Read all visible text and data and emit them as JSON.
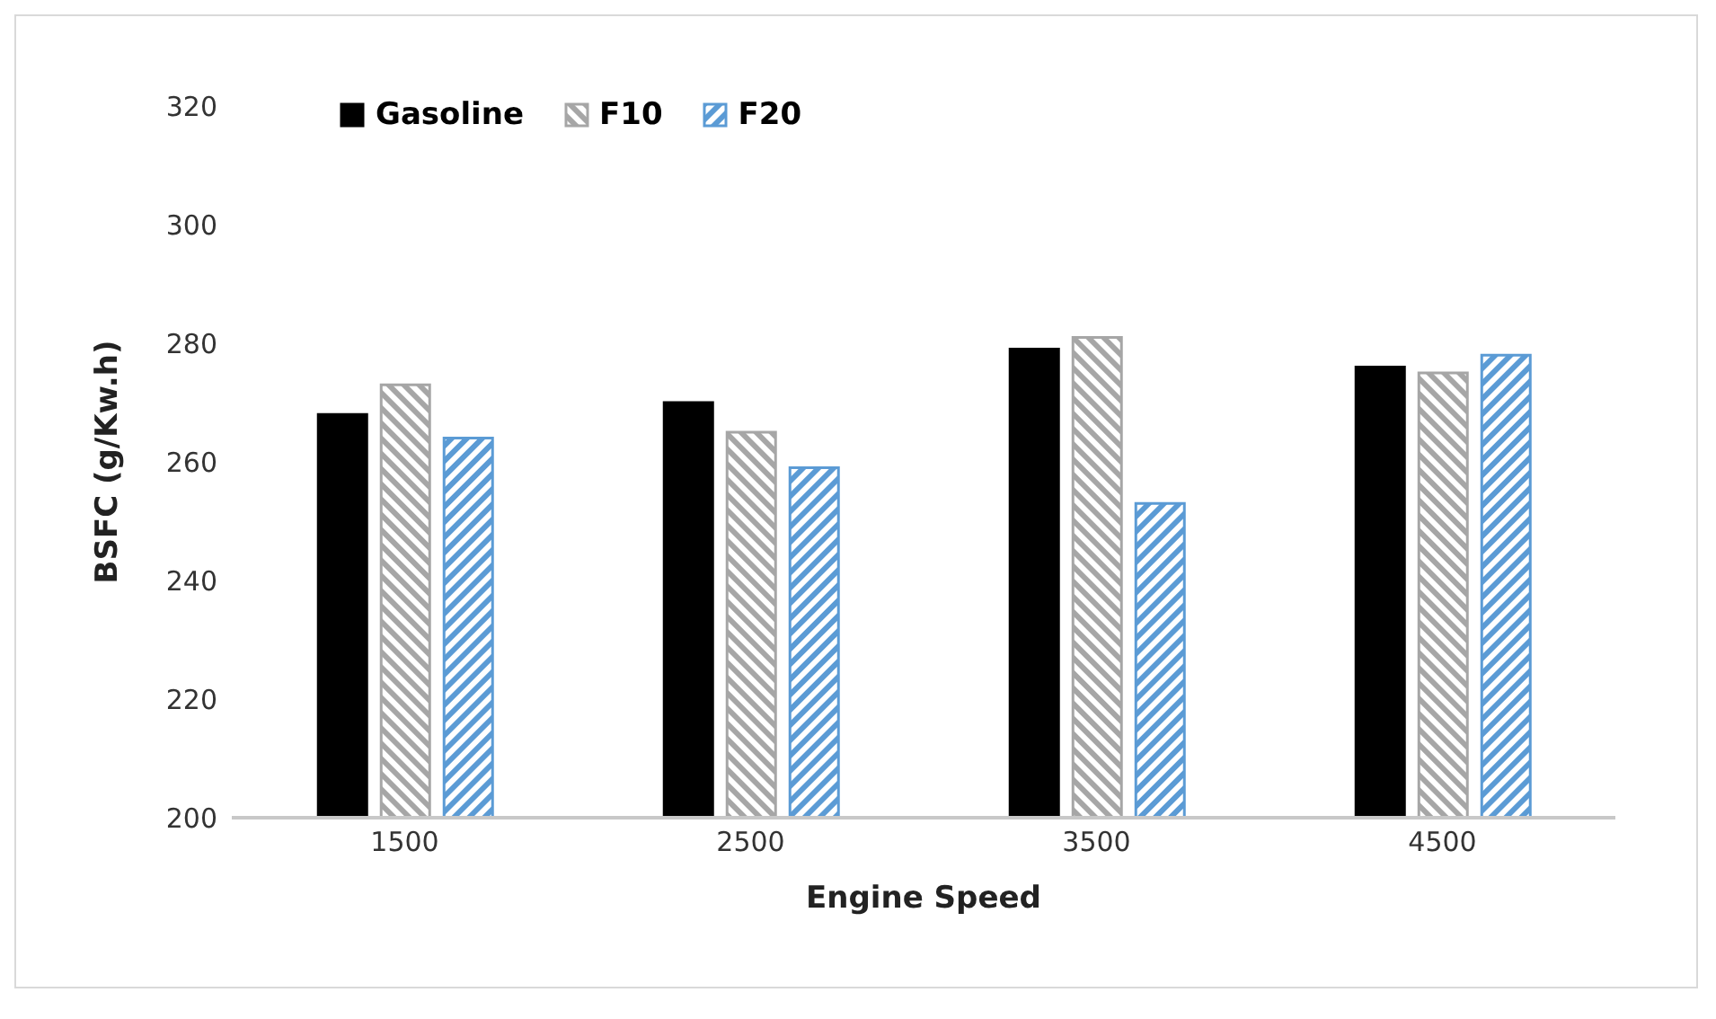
{
  "chart_data": {
    "type": "bar",
    "xlabel": "Engine Speed",
    "ylabel": "BSFC (g/Kw.h)",
    "categories": [
      "1500",
      "2500",
      "3500",
      "4500"
    ],
    "series": [
      {
        "name": "Gasoline",
        "color": "#000000",
        "values": [
          268,
          270,
          279,
          276
        ]
      },
      {
        "name": "F10",
        "color": "#a6a6a6",
        "values": [
          273,
          265,
          281,
          275
        ]
      },
      {
        "name": "F20",
        "color": "#5b9bd5",
        "values": [
          264,
          259,
          253,
          278
        ]
      }
    ],
    "ylim": [
      200,
      320
    ],
    "yticks": [
      200,
      220,
      240,
      260,
      280,
      300,
      320
    ],
    "grid": false,
    "legend": "top left"
  }
}
